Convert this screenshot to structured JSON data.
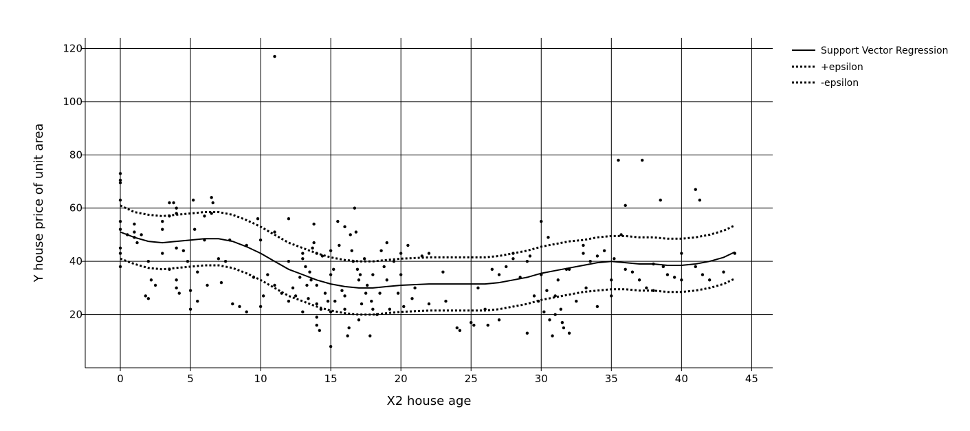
{
  "chart_data": {
    "type": "scatter",
    "title": "",
    "xlabel": "X2 house age",
    "ylabel": "Y house price of unit area",
    "xlim": [
      -2.5,
      46.5
    ],
    "ylim": [
      0,
      124
    ],
    "xticks": [
      0,
      5,
      10,
      15,
      20,
      25,
      30,
      35,
      40,
      45
    ],
    "yticks": [
      20,
      40,
      60,
      80,
      100,
      120
    ],
    "grid": true,
    "legend_position": "right",
    "colors": {
      "text": "#000000",
      "grid": "#000000",
      "points": "#000000",
      "background": "#ffffff"
    },
    "legend": [
      {
        "label": "Support Vector Regression",
        "style": "solid"
      },
      {
        "label": "+epsilon",
        "style": "dotted"
      },
      {
        "label": "-epsilon",
        "style": "dotted"
      }
    ],
    "svr_curve": [
      [
        0,
        51
      ],
      [
        1,
        49
      ],
      [
        2,
        47.5
      ],
      [
        3,
        47
      ],
      [
        4,
        47.5
      ],
      [
        5,
        48
      ],
      [
        6,
        48.5
      ],
      [
        7,
        48.5
      ],
      [
        8,
        47.5
      ],
      [
        9,
        45.5
      ],
      [
        10,
        43
      ],
      [
        11,
        40
      ],
      [
        12,
        37
      ],
      [
        13,
        35
      ],
      [
        14,
        33
      ],
      [
        15,
        31.5
      ],
      [
        16,
        30.5
      ],
      [
        17,
        30
      ],
      [
        18,
        30
      ],
      [
        19,
        30.5
      ],
      [
        20,
        31
      ],
      [
        22,
        31.5
      ],
      [
        24,
        31.5
      ],
      [
        26,
        31.5
      ],
      [
        27,
        32
      ],
      [
        28,
        33
      ],
      [
        29,
        34
      ],
      [
        30,
        35.5
      ],
      [
        31,
        36.5
      ],
      [
        32,
        37.5
      ],
      [
        33,
        38.5
      ],
      [
        34,
        39.5
      ],
      [
        35,
        40
      ],
      [
        36,
        39.5
      ],
      [
        37,
        39
      ],
      [
        38,
        39
      ],
      [
        39,
        38.5
      ],
      [
        40,
        38.5
      ],
      [
        41,
        39
      ],
      [
        42,
        40
      ],
      [
        43,
        41.5
      ],
      [
        43.8,
        43.5
      ]
    ],
    "plus_epsilon": [
      [
        0,
        61
      ],
      [
        1,
        58.5
      ],
      [
        2,
        57.5
      ],
      [
        3,
        57
      ],
      [
        4,
        57.5
      ],
      [
        5,
        58
      ],
      [
        6,
        58.5
      ],
      [
        7,
        58.5
      ],
      [
        8,
        57.5
      ],
      [
        9,
        55.5
      ],
      [
        10,
        53
      ],
      [
        11,
        50
      ],
      [
        12,
        47
      ],
      [
        13,
        45
      ],
      [
        14,
        43
      ],
      [
        15,
        41.5
      ],
      [
        16,
        40.5
      ],
      [
        17,
        40
      ],
      [
        18,
        40
      ],
      [
        19,
        40.5
      ],
      [
        20,
        41
      ],
      [
        22,
        41.5
      ],
      [
        24,
        41.5
      ],
      [
        26,
        41.5
      ],
      [
        27,
        42
      ],
      [
        28,
        43
      ],
      [
        29,
        44
      ],
      [
        30,
        45.5
      ],
      [
        31,
        46.5
      ],
      [
        32,
        47.5
      ],
      [
        33,
        48
      ],
      [
        34,
        49
      ],
      [
        35,
        49.5
      ],
      [
        36,
        49.5
      ],
      [
        37,
        49
      ],
      [
        38,
        49
      ],
      [
        39,
        48.5
      ],
      [
        40,
        48.5
      ],
      [
        41,
        49
      ],
      [
        42,
        50
      ],
      [
        43,
        51.5
      ],
      [
        43.8,
        53.5
      ]
    ],
    "minus_epsilon": [
      [
        0,
        41
      ],
      [
        1,
        39
      ],
      [
        2,
        37.5
      ],
      [
        3,
        37
      ],
      [
        4,
        37.5
      ],
      [
        5,
        38
      ],
      [
        6,
        38.5
      ],
      [
        7,
        38.5
      ],
      [
        8,
        37.5
      ],
      [
        9,
        35.5
      ],
      [
        10,
        33
      ],
      [
        11,
        30
      ],
      [
        12,
        27
      ],
      [
        13,
        25
      ],
      [
        14,
        23
      ],
      [
        15,
        21.5
      ],
      [
        16,
        20.5
      ],
      [
        17,
        20
      ],
      [
        18,
        20
      ],
      [
        19,
        20.5
      ],
      [
        20,
        21
      ],
      [
        22,
        21.5
      ],
      [
        24,
        21.5
      ],
      [
        26,
        21.5
      ],
      [
        27,
        22
      ],
      [
        28,
        23
      ],
      [
        29,
        24
      ],
      [
        30,
        25.5
      ],
      [
        31,
        26.5
      ],
      [
        32,
        27.5
      ],
      [
        33,
        28.5
      ],
      [
        34,
        29
      ],
      [
        35,
        29.5
      ],
      [
        36,
        29.5
      ],
      [
        37,
        29
      ],
      [
        38,
        29
      ],
      [
        39,
        28.5
      ],
      [
        40,
        28.5
      ],
      [
        41,
        29
      ],
      [
        42,
        30
      ],
      [
        43,
        31.5
      ],
      [
        43.8,
        33.5
      ]
    ],
    "points": [
      [
        0,
        73
      ],
      [
        0,
        70.5
      ],
      [
        0,
        69.5
      ],
      [
        0,
        63
      ],
      [
        0,
        55
      ],
      [
        0,
        52
      ],
      [
        0,
        45
      ],
      [
        0,
        43
      ],
      [
        0,
        38
      ],
      [
        0.5,
        50
      ],
      [
        1,
        54
      ],
      [
        1,
        51
      ],
      [
        1,
        49
      ],
      [
        1.2,
        47
      ],
      [
        1.5,
        50
      ],
      [
        1.8,
        27
      ],
      [
        2,
        26
      ],
      [
        2,
        40
      ],
      [
        2.2,
        33
      ],
      [
        2.5,
        31
      ],
      [
        3,
        55
      ],
      [
        3,
        52
      ],
      [
        3,
        43
      ],
      [
        3.5,
        62
      ],
      [
        3.5,
        57
      ],
      [
        3.5,
        37
      ],
      [
        3.8,
        62
      ],
      [
        4,
        60
      ],
      [
        4,
        58
      ],
      [
        4,
        45
      ],
      [
        4,
        33
      ],
      [
        4,
        30
      ],
      [
        4.2,
        28
      ],
      [
        4.5,
        44
      ],
      [
        4.8,
        40
      ],
      [
        5,
        22
      ],
      [
        5,
        29
      ],
      [
        5.2,
        63
      ],
      [
        5.3,
        52
      ],
      [
        5.5,
        36
      ],
      [
        5.5,
        25
      ],
      [
        6,
        57
      ],
      [
        6,
        48
      ],
      [
        6.2,
        31
      ],
      [
        6.5,
        58
      ],
      [
        6.5,
        64
      ],
      [
        6.6,
        62
      ],
      [
        7,
        41
      ],
      [
        7.2,
        32
      ],
      [
        7.5,
        40
      ],
      [
        7.8,
        48
      ],
      [
        8,
        24
      ],
      [
        8.5,
        23
      ],
      [
        9,
        46
      ],
      [
        9,
        21
      ],
      [
        9.5,
        34
      ],
      [
        9.8,
        56
      ],
      [
        10,
        23
      ],
      [
        10,
        48
      ],
      [
        10.2,
        27
      ],
      [
        10.5,
        35
      ],
      [
        11,
        51
      ],
      [
        11,
        117
      ],
      [
        11,
        31
      ],
      [
        11.5,
        28
      ],
      [
        12,
        56
      ],
      [
        12,
        40
      ],
      [
        12,
        25
      ],
      [
        12.3,
        30
      ],
      [
        12.5,
        27
      ],
      [
        12.8,
        34
      ],
      [
        13,
        43
      ],
      [
        13,
        21
      ],
      [
        13,
        41
      ],
      [
        13.2,
        38
      ],
      [
        13.3,
        31
      ],
      [
        13.4,
        26
      ],
      [
        13.5,
        36
      ],
      [
        13.6,
        33
      ],
      [
        13.7,
        45
      ],
      [
        13.8,
        54
      ],
      [
        13.8,
        47
      ],
      [
        14,
        31
      ],
      [
        14,
        43
      ],
      [
        14,
        19
      ],
      [
        14,
        24
      ],
      [
        14,
        16
      ],
      [
        14.2,
        14
      ],
      [
        14.3,
        22
      ],
      [
        14.4,
        42
      ],
      [
        14.6,
        28
      ],
      [
        14.8,
        25
      ],
      [
        15,
        8
      ],
      [
        15,
        21
      ],
      [
        15,
        35
      ],
      [
        15,
        44
      ],
      [
        15.2,
        37
      ],
      [
        15.3,
        25
      ],
      [
        15.5,
        55
      ],
      [
        15.6,
        46
      ],
      [
        15.8,
        29
      ],
      [
        16,
        53
      ],
      [
        16,
        22
      ],
      [
        16,
        27
      ],
      [
        16.2,
        12
      ],
      [
        16.3,
        15
      ],
      [
        16.4,
        50
      ],
      [
        16.5,
        44
      ],
      [
        16.6,
        40
      ],
      [
        16.7,
        60
      ],
      [
        16.8,
        51
      ],
      [
        16.9,
        37
      ],
      [
        17,
        33
      ],
      [
        17,
        18
      ],
      [
        17.1,
        35
      ],
      [
        17.2,
        24
      ],
      [
        17.4,
        41
      ],
      [
        17.5,
        28
      ],
      [
        17.6,
        31
      ],
      [
        17.8,
        12
      ],
      [
        17.9,
        25
      ],
      [
        18,
        22
      ],
      [
        18,
        35
      ],
      [
        18.3,
        20
      ],
      [
        18.5,
        28
      ],
      [
        18.6,
        44
      ],
      [
        18.8,
        38
      ],
      [
        19,
        47
      ],
      [
        19,
        33
      ],
      [
        19.2,
        22
      ],
      [
        19.5,
        40
      ],
      [
        19.8,
        28
      ],
      [
        20,
        43
      ],
      [
        20,
        35
      ],
      [
        20.2,
        23
      ],
      [
        20.5,
        46
      ],
      [
        20.8,
        26
      ],
      [
        21,
        30
      ],
      [
        21.5,
        42
      ],
      [
        22,
        43
      ],
      [
        22,
        24
      ],
      [
        23,
        36
      ],
      [
        23.2,
        25
      ],
      [
        24,
        15
      ],
      [
        24.2,
        14
      ],
      [
        25,
        17
      ],
      [
        25.2,
        16
      ],
      [
        25.5,
        30
      ],
      [
        26,
        22
      ],
      [
        26.2,
        16
      ],
      [
        26.5,
        37
      ],
      [
        27,
        18
      ],
      [
        27,
        35
      ],
      [
        27.5,
        38
      ],
      [
        28,
        43
      ],
      [
        28,
        41
      ],
      [
        28.5,
        34
      ],
      [
        29,
        40
      ],
      [
        29,
        13
      ],
      [
        29.2,
        42
      ],
      [
        29.5,
        27
      ],
      [
        29.8,
        25
      ],
      [
        30,
        55
      ],
      [
        30,
        35
      ],
      [
        30.2,
        21
      ],
      [
        30.4,
        29
      ],
      [
        30.5,
        49
      ],
      [
        30.6,
        18
      ],
      [
        30.8,
        12
      ],
      [
        31,
        20
      ],
      [
        31,
        27
      ],
      [
        31.2,
        33
      ],
      [
        31.4,
        22
      ],
      [
        31.5,
        17
      ],
      [
        31.6,
        15
      ],
      [
        31.8,
        37
      ],
      [
        32,
        13
      ],
      [
        32,
        37
      ],
      [
        32.5,
        25
      ],
      [
        33,
        46
      ],
      [
        33,
        43
      ],
      [
        33.2,
        30
      ],
      [
        33.5,
        40
      ],
      [
        34,
        23
      ],
      [
        34,
        42
      ],
      [
        34.5,
        44
      ],
      [
        35,
        27
      ],
      [
        35,
        33
      ],
      [
        35.2,
        41
      ],
      [
        35.5,
        78
      ],
      [
        35.7,
        50
      ],
      [
        36,
        61
      ],
      [
        36,
        37
      ],
      [
        36.5,
        36
      ],
      [
        37,
        33
      ],
      [
        37.2,
        78
      ],
      [
        37.5,
        30
      ],
      [
        38,
        29
      ],
      [
        38,
        39
      ],
      [
        38.5,
        63
      ],
      [
        38.7,
        38
      ],
      [
        39,
        35
      ],
      [
        39.5,
        34
      ],
      [
        40,
        33
      ],
      [
        40,
        43
      ],
      [
        41,
        67
      ],
      [
        41,
        38
      ],
      [
        41.3,
        63
      ],
      [
        41.5,
        35
      ],
      [
        42,
        33
      ],
      [
        43,
        36
      ],
      [
        43.8,
        43
      ]
    ]
  }
}
